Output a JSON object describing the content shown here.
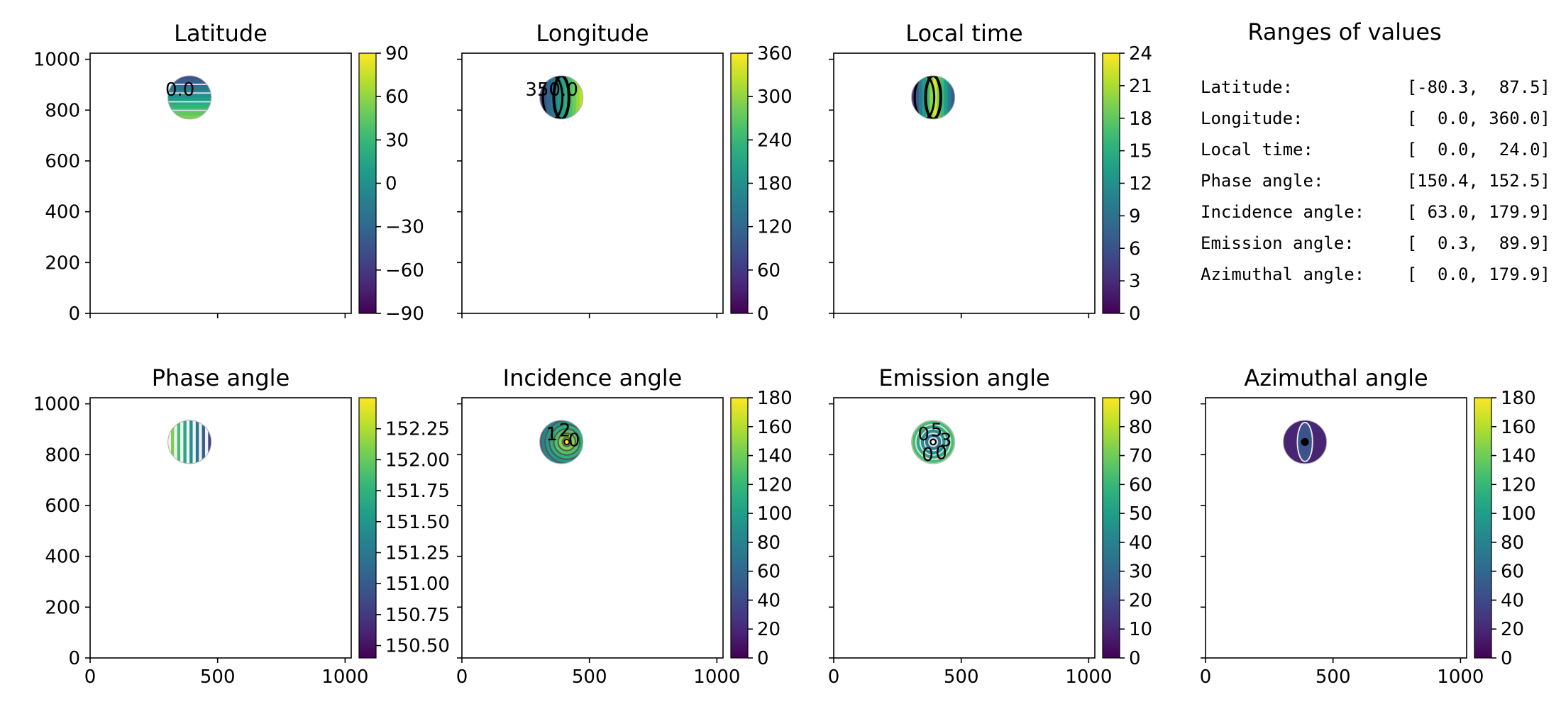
{
  "figure": {
    "colormap": "viridis",
    "colors": {
      "background": "#ffffff",
      "axis": "#000000",
      "disk_outline": "#b0b0b0"
    }
  },
  "chart_data": [
    {
      "type": "heatmap",
      "title": "Latitude",
      "xlim": [
        0,
        1024
      ],
      "ylim": [
        0,
        1024
      ],
      "xticks": [
        0,
        500,
        1000
      ],
      "yticks": [
        0,
        200,
        400,
        600,
        800,
        1000
      ],
      "show_xticklabels": false,
      "show_yticklabels": true,
      "disk": {
        "cx": 390,
        "cy": 850,
        "r": 85
      },
      "pattern": "hbands",
      "colorbar": {
        "min": -90,
        "max": 90,
        "ticks": [
          -90,
          -60,
          -30,
          0,
          30,
          60,
          90
        ],
        "tick_labels": [
          "−90",
          "−60",
          "−30",
          "0",
          "30",
          "60",
          "90"
        ]
      },
      "contour_labels": [
        "0.0"
      ]
    },
    {
      "type": "heatmap",
      "title": "Longitude",
      "xlim": [
        0,
        1024
      ],
      "ylim": [
        0,
        1024
      ],
      "xticks": [
        0,
        500,
        1000
      ],
      "yticks": [
        0,
        200,
        400,
        600,
        800,
        1000
      ],
      "show_xticklabels": false,
      "show_yticklabels": false,
      "disk": {
        "cx": 390,
        "cy": 850,
        "r": 85
      },
      "pattern": "vbands",
      "colorbar": {
        "min": 0,
        "max": 360,
        "ticks": [
          0,
          60,
          120,
          180,
          240,
          300,
          360
        ],
        "tick_labels": [
          "0",
          "60",
          "120",
          "180",
          "240",
          "300",
          "360"
        ]
      },
      "contour_labels": [
        "350.0"
      ]
    },
    {
      "type": "heatmap",
      "title": "Local time",
      "xlim": [
        0,
        1024
      ],
      "ylim": [
        0,
        1024
      ],
      "xticks": [
        0,
        500,
        1000
      ],
      "yticks": [
        0,
        200,
        400,
        600,
        800,
        1000
      ],
      "show_xticklabels": false,
      "show_yticklabels": false,
      "disk": {
        "cx": 390,
        "cy": 850,
        "r": 85
      },
      "pattern": "vbands",
      "colorbar": {
        "min": 0,
        "max": 24,
        "ticks": [
          0,
          3,
          6,
          9,
          12,
          15,
          18,
          21,
          24
        ],
        "tick_labels": [
          "0",
          "3",
          "6",
          "9",
          "12",
          "15",
          "18",
          "21",
          "24"
        ]
      },
      "contour_labels": []
    },
    {
      "type": "heatmap",
      "title": "Phase angle",
      "xlim": [
        0,
        1024
      ],
      "ylim": [
        0,
        1024
      ],
      "xticks": [
        0,
        500,
        1000
      ],
      "yticks": [
        0,
        200,
        400,
        600,
        800,
        1000
      ],
      "show_xticklabels": true,
      "show_yticklabels": true,
      "disk": {
        "cx": 390,
        "cy": 850,
        "r": 85
      },
      "pattern": "vstripes",
      "colorbar": {
        "min": 150.4,
        "max": 152.5,
        "ticks": [
          150.5,
          150.75,
          151.0,
          151.25,
          151.5,
          151.75,
          152.0,
          152.25
        ],
        "tick_labels": [
          "150.50",
          "150.75",
          "151.00",
          "151.25",
          "151.50",
          "151.75",
          "152.00",
          "152.25"
        ]
      },
      "contour_labels": []
    },
    {
      "type": "heatmap",
      "title": "Incidence angle",
      "xlim": [
        0,
        1024
      ],
      "ylim": [
        0,
        1024
      ],
      "xticks": [
        0,
        500,
        1000
      ],
      "yticks": [
        0,
        200,
        400,
        600,
        800,
        1000
      ],
      "show_xticklabels": true,
      "show_yticklabels": false,
      "disk": {
        "cx": 390,
        "cy": 850,
        "r": 85
      },
      "pattern": "rings_offset",
      "colorbar": {
        "min": 0,
        "max": 180,
        "ticks": [
          0,
          20,
          40,
          60,
          80,
          100,
          120,
          140,
          160,
          180
        ],
        "tick_labels": [
          "0",
          "20",
          "40",
          "60",
          "80",
          "100",
          "120",
          "140",
          "160",
          "180"
        ]
      },
      "contour_labels": [
        "1",
        "2",
        "0"
      ]
    },
    {
      "type": "heatmap",
      "title": "Emission angle",
      "xlim": [
        0,
        1024
      ],
      "ylim": [
        0,
        1024
      ],
      "xticks": [
        0,
        500,
        1000
      ],
      "yticks": [
        0,
        200,
        400,
        600,
        800,
        1000
      ],
      "show_xticklabels": true,
      "show_yticklabels": false,
      "disk": {
        "cx": 390,
        "cy": 850,
        "r": 85
      },
      "pattern": "rings",
      "colorbar": {
        "min": 0,
        "max": 90,
        "ticks": [
          0,
          10,
          20,
          30,
          40,
          50,
          60,
          70,
          80,
          90
        ],
        "tick_labels": [
          "0",
          "10",
          "20",
          "30",
          "40",
          "50",
          "60",
          "70",
          "80",
          "90"
        ]
      },
      "contour_labels": [
        "0",
        "5",
        "3",
        "0",
        "0"
      ]
    },
    {
      "type": "heatmap",
      "title": "Azimuthal angle",
      "xlim": [
        0,
        1024
      ],
      "ylim": [
        0,
        1024
      ],
      "xticks": [
        0,
        500,
        1000
      ],
      "yticks": [
        0,
        200,
        400,
        600,
        800,
        1000
      ],
      "show_xticklabels": true,
      "show_yticklabels": false,
      "disk": {
        "cx": 390,
        "cy": 850,
        "r": 85
      },
      "pattern": "azimuth",
      "colorbar": {
        "min": 0,
        "max": 180,
        "ticks": [
          0,
          20,
          40,
          60,
          80,
          100,
          120,
          140,
          160,
          180
        ],
        "tick_labels": [
          "0",
          "20",
          "40",
          "60",
          "80",
          "100",
          "120",
          "140",
          "160",
          "180"
        ]
      },
      "contour_labels": []
    },
    {
      "type": "table",
      "title": "Ranges of values",
      "rows": [
        {
          "label": "Latitude:",
          "range": "[-80.3,  87.5]"
        },
        {
          "label": "Longitude:",
          "range": "[  0.0, 360.0]"
        },
        {
          "label": "Local time:",
          "range": "[  0.0,  24.0]"
        },
        {
          "label": "Phase angle:",
          "range": "[150.4, 152.5]"
        },
        {
          "label": "Incidence angle:",
          "range": "[ 63.0, 179.9]"
        },
        {
          "label": "Emission angle:",
          "range": "[  0.3,  89.9]"
        },
        {
          "label": "Azimuthal angle:",
          "range": "[  0.0, 179.9]"
        }
      ]
    }
  ]
}
